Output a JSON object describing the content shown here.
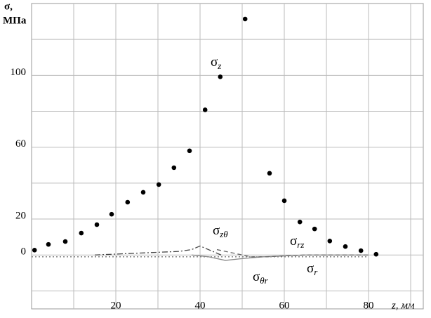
{
  "chart_data": {
    "type": "scatter",
    "y_label_symbol": "σ,",
    "y_label_unit": "МПа",
    "x_label": "z, мм",
    "xlim": [
      0,
      93
    ],
    "ylim": [
      -30,
      140
    ],
    "xticks": [
      20,
      40,
      60,
      80
    ],
    "yticks": [
      0,
      20,
      60,
      100
    ],
    "xgrid": [
      10,
      20,
      30,
      40,
      50,
      60,
      70,
      80,
      90
    ],
    "ygrid": [
      -20,
      0,
      20,
      40,
      60,
      80,
      100,
      120
    ],
    "grid": true,
    "series": [
      {
        "name": "σz",
        "style": "dots",
        "color": "#000000",
        "x": [
          0.7,
          4,
          8,
          11.8,
          15.5,
          19,
          22.8,
          26.5,
          30.2,
          33.8,
          37.5,
          41.2,
          44.8,
          50.7,
          56.5,
          60,
          63.7,
          67.2,
          70.8,
          74.5,
          78.2,
          81.8
        ],
        "values": [
          2.7,
          5.9,
          7.5,
          12.2,
          16.9,
          22.7,
          29.4,
          34.9,
          39.2,
          48.6,
          58,
          80.8,
          99.2,
          131.4,
          45.5,
          30.2,
          18.4,
          14.5,
          7.8,
          4.7,
          2.4,
          0.4
        ]
      },
      {
        "name": "σr",
        "style": "dotted",
        "color": "#777777",
        "x": [
          0,
          5,
          10,
          15,
          20,
          25,
          30,
          35,
          40,
          45,
          50,
          55,
          60,
          65,
          70,
          75,
          80
        ],
        "values": [
          -1,
          -1,
          -1,
          -1,
          -1,
          -1,
          -1,
          -1,
          -1,
          -1,
          -1,
          -1,
          -1,
          -1,
          -1,
          -1,
          -1
        ]
      },
      {
        "name": "σzθ",
        "style": "dashdot",
        "color": "#444444",
        "x": [
          15,
          20,
          25,
          30,
          35,
          38,
          40,
          42,
          45
        ],
        "values": [
          0,
          0.5,
          1,
          1.5,
          2,
          3,
          5,
          3,
          0
        ]
      },
      {
        "name": "σθr",
        "style": "solid",
        "color": "#888888",
        "x": [
          38,
          42,
          46,
          50,
          55,
          60,
          65,
          70,
          75,
          80
        ],
        "values": [
          0,
          -1,
          -3,
          -2,
          -1,
          -0.5,
          0,
          0,
          0,
          0
        ]
      },
      {
        "name": "σrz",
        "style": "dashed",
        "color": "#666666",
        "x": [
          44,
          48,
          52,
          56,
          60,
          65,
          70,
          75,
          80
        ],
        "values": [
          3,
          1,
          -1,
          -1,
          -0.5,
          0,
          0,
          0,
          0
        ]
      }
    ],
    "annotations": [
      {
        "symbol": "σ",
        "subscript": "z"
      },
      {
        "symbol": "σ",
        "subscript": "zθ"
      },
      {
        "symbol": "σ",
        "subscript": "rz"
      },
      {
        "symbol": "σ",
        "subscript": "θr"
      },
      {
        "symbol": "σ",
        "subscript": "r"
      }
    ]
  }
}
